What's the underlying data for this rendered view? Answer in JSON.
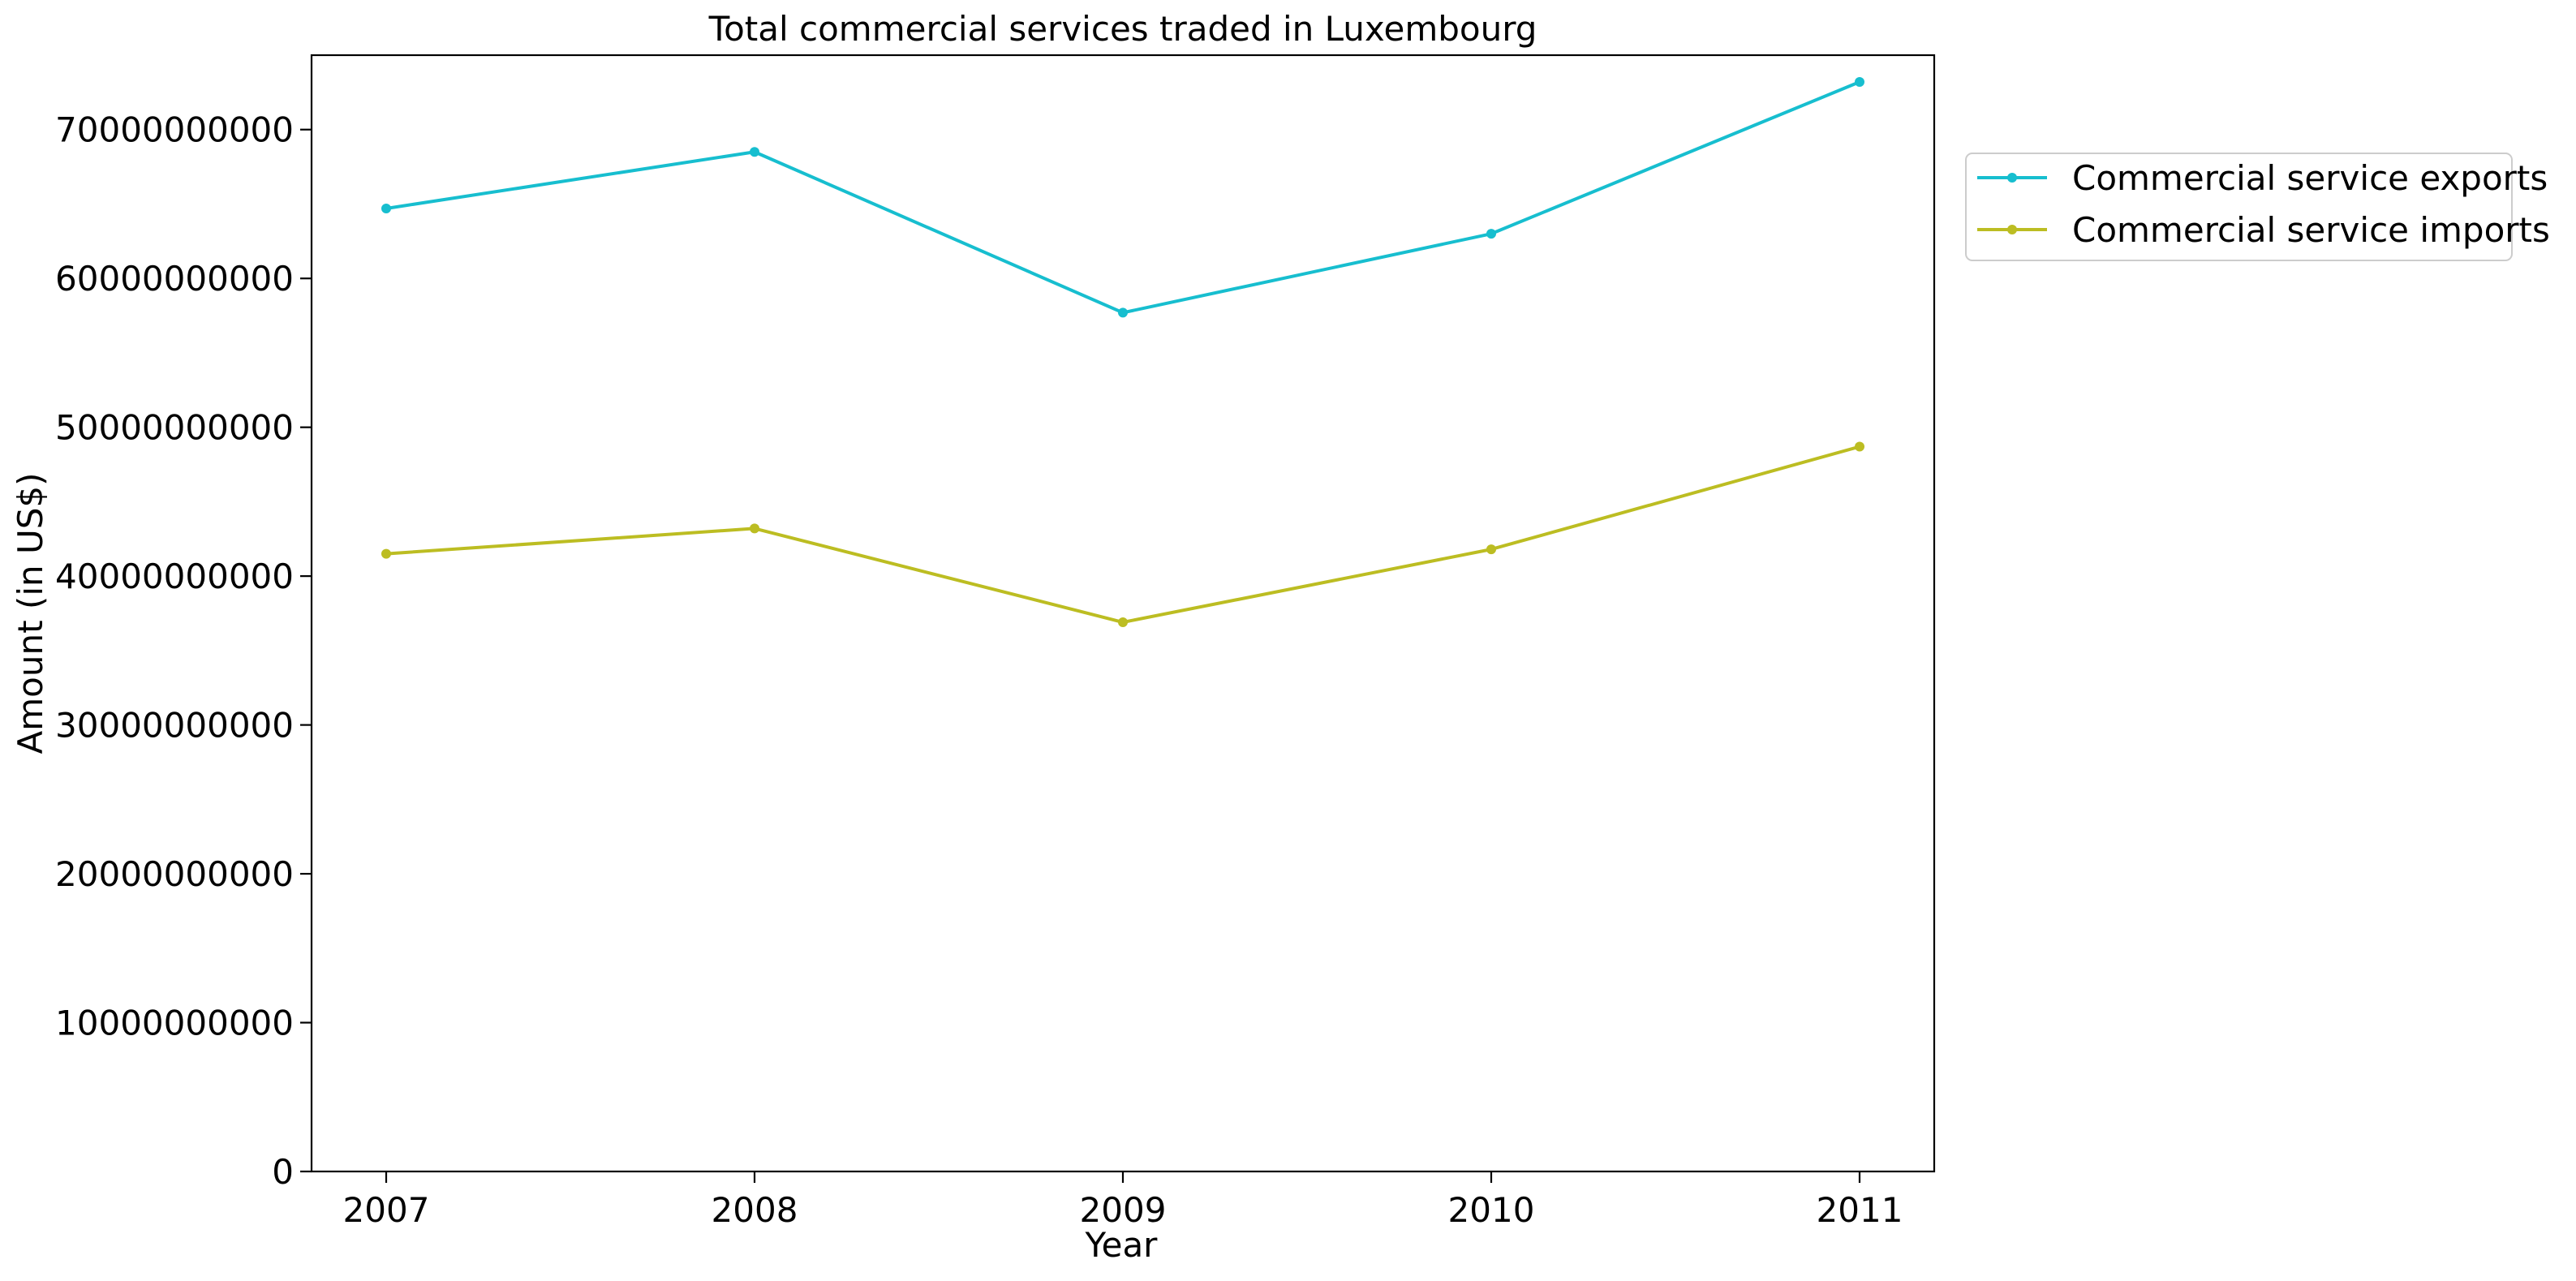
{
  "chart_data": {
    "type": "line",
    "title": "Total commercial services traded in Luxembourg",
    "xlabel": "Year",
    "ylabel": "Amount (in US$)",
    "categories": [
      "2007",
      "2008",
      "2009",
      "2010",
      "2011"
    ],
    "y_ticks": [
      "0",
      "10000000000",
      "20000000000",
      "30000000000",
      "40000000000",
      "50000000000",
      "60000000000",
      "70000000000"
    ],
    "ylim": [
      0,
      75000000000
    ],
    "grid": false,
    "legend_position": "outside-right-top",
    "series": [
      {
        "name": "Commercial service exports",
        "color": "#17becf",
        "values": [
          64700000000,
          68500000000,
          57700000000,
          63000000000,
          73200000000
        ]
      },
      {
        "name": "Commercial service imports",
        "color": "#bcbd22",
        "values": [
          41500000000,
          43200000000,
          36900000000,
          41800000000,
          48700000000
        ]
      }
    ]
  }
}
